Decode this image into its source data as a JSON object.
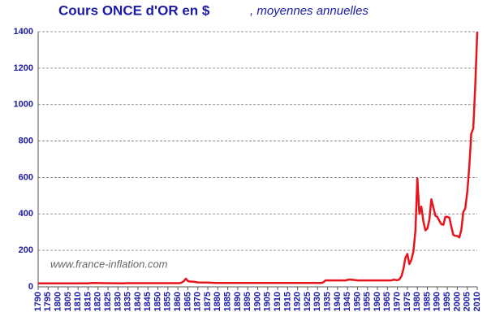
{
  "chart_data": {
    "type": "line",
    "title": "Cours ONCE d'OR en $",
    "subtitle": ", moyennes annuelles",
    "annotation": "www.france-inflation.com",
    "x": [
      1790,
      1810,
      1815,
      1817,
      1833,
      1834,
      1860,
      1861,
      1862,
      1863,
      1864,
      1865,
      1866,
      1868,
      1870,
      1875,
      1879,
      1932,
      1933,
      1934,
      1944,
      1946,
      1948,
      1950,
      1967,
      1968,
      1970,
      1971,
      1972,
      1973,
      1974,
      1975,
      1976,
      1977,
      1978,
      1979,
      1980,
      1981,
      1982,
      1983,
      1984,
      1985,
      1986,
      1987,
      1988,
      1989,
      1990,
      1991,
      1992,
      1993,
      1994,
      1995,
      1996,
      1997,
      1998,
      1999,
      2000,
      2001,
      2002,
      2003,
      2004,
      2005,
      2006,
      2007,
      2008,
      2009,
      2010
    ],
    "series": [
      {
        "name": "Cours",
        "color": "#e8141c",
        "values": [
          19,
          19,
          19,
          21,
          19,
          20,
          20,
          20,
          24,
          31,
          45,
          32,
          29,
          28,
          24,
          23,
          21,
          21,
          26,
          35,
          35,
          40,
          38,
          35,
          35,
          39,
          36,
          41,
          58,
          97,
          159,
          180,
          125,
          148,
          193,
          306,
          595,
          400,
          440,
          360,
          310,
          320,
          368,
          480,
          437,
          390,
          384,
          362,
          344,
          340,
          384,
          384,
          380,
          331,
          285,
          280,
          279,
          271,
          310,
          410,
          430,
          520,
          660,
          840,
          870,
          1100,
          1400
        ]
      }
    ],
    "xlim": [
      1790,
      2010
    ],
    "xticks": [
      1790,
      1795,
      1800,
      1805,
      1810,
      1815,
      1820,
      1825,
      1830,
      1835,
      1840,
      1845,
      1850,
      1855,
      1860,
      1865,
      1870,
      1875,
      1880,
      1885,
      1890,
      1895,
      1900,
      1905,
      1910,
      1915,
      1920,
      1925,
      1930,
      1935,
      1940,
      1945,
      1950,
      1955,
      1960,
      1965,
      1970,
      1975,
      1980,
      1985,
      1990,
      1995,
      2000,
      2005,
      2010
    ],
    "ylim": [
      0,
      1400
    ],
    "yticks": [
      0,
      200,
      400,
      600,
      800,
      1000,
      1200,
      1400
    ],
    "grid": true
  }
}
